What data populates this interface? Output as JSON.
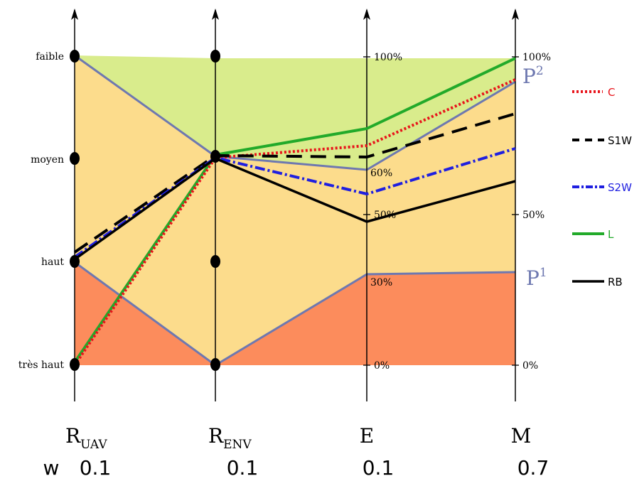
{
  "levels": {
    "faible": "faible",
    "moyen": "moyen",
    "haut": "haut",
    "tres_haut": "très haut"
  },
  "ticks": {
    "e_100": "100%",
    "e_60": "60%",
    "e_50": "50%",
    "e_30": "30%",
    "e_0": "0%",
    "m_100": "100%",
    "m_50": "50%",
    "m_0": "0%"
  },
  "profiles": {
    "p2": "P",
    "p2_sup": "2",
    "p1": "P",
    "p1_sup": "1"
  },
  "axes": [
    {
      "base": "R",
      "sub": "UAV"
    },
    {
      "base": "R",
      "sub": "ENV"
    },
    {
      "base": "E",
      "sub": ""
    },
    {
      "base": "M",
      "sub": ""
    }
  ],
  "weights": {
    "label": "w",
    "values": [
      "0.1",
      "0.1",
      "0.1",
      "0.7"
    ]
  },
  "legend": [
    {
      "label": "C",
      "color": "#e8141b",
      "style": "dotted"
    },
    {
      "label": "S1W",
      "color": "#000000",
      "style": "dashed"
    },
    {
      "label": "S2W",
      "color": "#1f1fe0",
      "style": "dashdot"
    },
    {
      "label": "L",
      "color": "#22aa2a",
      "style": "solid"
    },
    {
      "label": "RB",
      "color": "#000000",
      "style": "solid"
    }
  ],
  "colors": {
    "zone_low": "#d9ec8c",
    "zone_mid": "#fcdc8c",
    "zone_high": "#fc8c5c",
    "profile_line": "#6e78b0"
  }
}
